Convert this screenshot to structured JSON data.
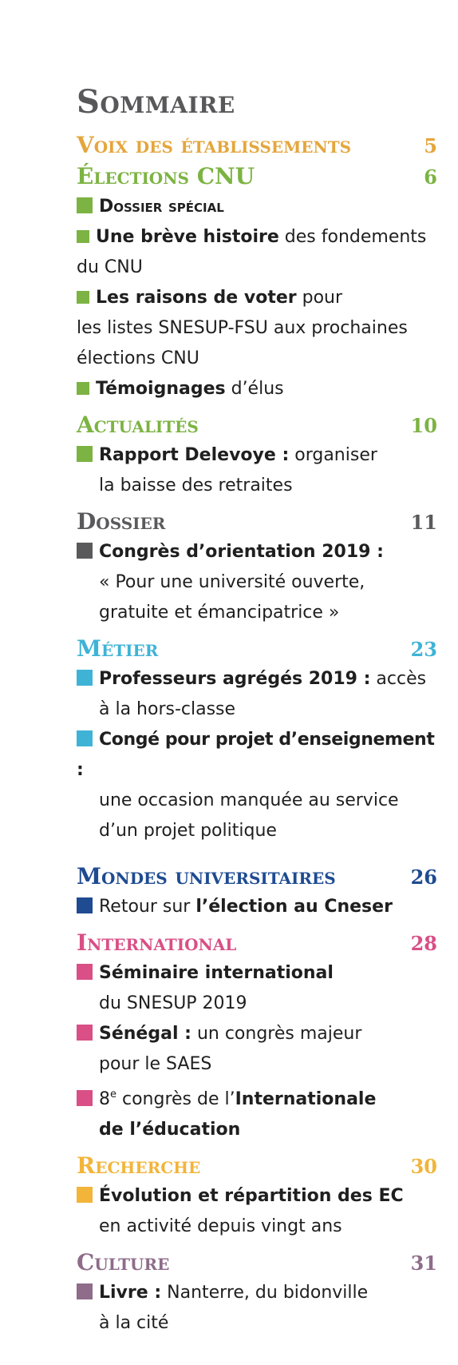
{
  "title": "Sommaire",
  "colors": {
    "gray": "#58585a",
    "orange": "#e4a63c",
    "green": "#7cb342",
    "dark": "#5a5a5c",
    "cyan": "#3fb3d6",
    "blue": "#1e4b91",
    "pink": "#d94f86",
    "yellow": "#f2b53a",
    "mauve": "#8e6c8a"
  },
  "sections": {
    "voix": {
      "label": "Voix des établissements",
      "page": "5"
    },
    "cnu": {
      "label": "Élections CNU",
      "page": "6",
      "dossier": "Dossier spécial",
      "i1b": "Une brève histoire",
      "i1t": " des fondements",
      "i1c": "du CNU",
      "i2b": "Les raisons de voter",
      "i2t": " pour",
      "i2c": "les listes SNESUP-FSU aux prochaines",
      "i2d": "élections CNU",
      "i3b": "Témoignages",
      "i3t": " d’élus"
    },
    "actu": {
      "label": "Actualités",
      "page": "10",
      "i1b": "Rapport Delevoye :",
      "i1t": " organiser",
      "i1c": "la baisse des retraites"
    },
    "dossier": {
      "label": "Dossier",
      "page": "11",
      "i1b": "Congrès d’orientation 2019 :",
      "i1c": "« Pour une université ouverte,",
      "i1d": "gratuite et émancipatrice »"
    },
    "metier": {
      "label": "Métier",
      "page": "23",
      "i1b": "Professeurs agrégés 2019 :",
      "i1t": " accès",
      "i1c": "à la hors-classe",
      "i2b": "Congé pour projet d’enseignement :",
      "i2c": "une occasion manquée au service",
      "i2d": "d’un projet politique"
    },
    "mondes": {
      "label": "Mondes universitaires",
      "page": "26",
      "i1t": "Retour sur ",
      "i1b": "l’élection au Cneser"
    },
    "inter": {
      "label": "International",
      "page": "28",
      "i1b": "Séminaire international",
      "i1c": "du SNESUP 2019",
      "i2b": "Sénégal :",
      "i2t": " un congrès majeur",
      "i2c": "pour le SAES",
      "i3a": "8",
      "i3sup": "e",
      "i3t": " congrès de l’",
      "i3b": "Internationale",
      "i3c": "de l’éducation"
    },
    "recherche": {
      "label": "Recherche",
      "page": "30",
      "i1b": "Évolution et répartition des EC",
      "i1c": "en activité depuis vingt ans"
    },
    "culture": {
      "label": "Culture",
      "page": "31",
      "i1b": "Livre :",
      "i1t": " Nanterre, du bidonville",
      "i1c": "à la cité"
    }
  }
}
